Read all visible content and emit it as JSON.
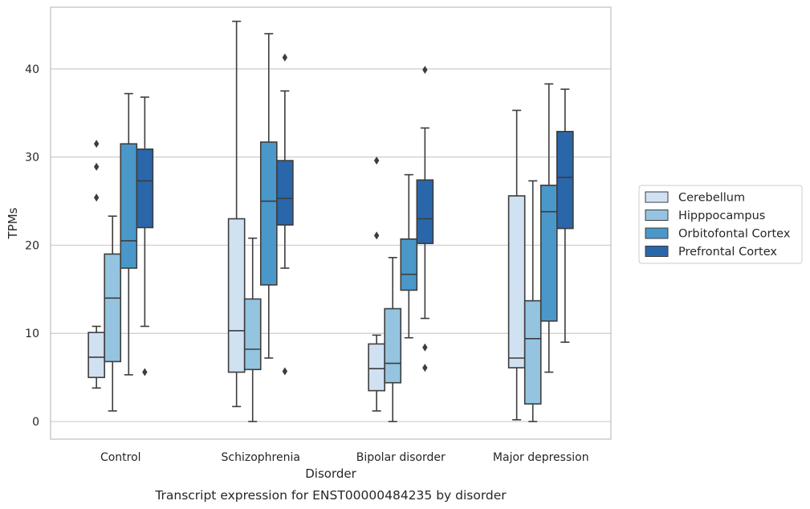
{
  "chart_data": {
    "type": "boxplot",
    "caption": "Transcript expression for ENST00000484235 by disorder",
    "xlabel": "Disorder",
    "ylabel": "TPMs",
    "ylim": [
      -2,
      47
    ],
    "yticks": [
      0,
      10,
      20,
      30,
      40
    ],
    "grid": "horizontal",
    "legend_position": "right-outside",
    "categories": [
      "Control",
      "Schizophrenia",
      "Bipolar disorder",
      "Major depression"
    ],
    "series": [
      {
        "name": "Cerebellum",
        "color": "#d0e1f2",
        "boxes": [
          {
            "whislo": 3.8,
            "q1": 5.0,
            "med": 7.3,
            "q3": 10.1,
            "whishi": 10.8,
            "fliers": [
              25.4,
              28.9,
              31.5
            ]
          },
          {
            "whislo": 1.7,
            "q1": 5.6,
            "med": 10.3,
            "q3": 23.0,
            "whishi": 45.4,
            "fliers": []
          },
          {
            "whislo": 1.2,
            "q1": 3.5,
            "med": 6.0,
            "q3": 8.8,
            "whishi": 9.8,
            "fliers": [
              21.1,
              29.6
            ]
          },
          {
            "whislo": 0.2,
            "q1": 6.1,
            "med": 7.2,
            "q3": 25.6,
            "whishi": 35.3,
            "fliers": []
          }
        ]
      },
      {
        "name": "Hipppocampus",
        "color": "#94c4df",
        "boxes": [
          {
            "whislo": 1.2,
            "q1": 6.8,
            "med": 14.0,
            "q3": 19.0,
            "whishi": 23.3,
            "fliers": []
          },
          {
            "whislo": 0.0,
            "q1": 5.9,
            "med": 8.2,
            "q3": 13.9,
            "whishi": 20.8,
            "fliers": []
          },
          {
            "whislo": 0.0,
            "q1": 4.4,
            "med": 6.6,
            "q3": 12.8,
            "whishi": 18.6,
            "fliers": []
          },
          {
            "whislo": 0.0,
            "q1": 2.0,
            "med": 9.4,
            "q3": 13.7,
            "whishi": 27.3,
            "fliers": []
          }
        ]
      },
      {
        "name": "Orbitofontal Cortex",
        "color": "#4a98c9",
        "boxes": [
          {
            "whislo": 5.3,
            "q1": 17.4,
            "med": 20.5,
            "q3": 31.5,
            "whishi": 37.2,
            "fliers": []
          },
          {
            "whislo": 7.2,
            "q1": 15.5,
            "med": 25.0,
            "q3": 31.7,
            "whishi": 44.0,
            "fliers": []
          },
          {
            "whislo": 9.5,
            "q1": 14.9,
            "med": 16.7,
            "q3": 20.7,
            "whishi": 28.0,
            "fliers": []
          },
          {
            "whislo": 5.6,
            "q1": 11.4,
            "med": 23.8,
            "q3": 26.8,
            "whishi": 38.3,
            "fliers": []
          }
        ]
      },
      {
        "name": "Prefrontal Cortex",
        "color": "#2a66aa",
        "boxes": [
          {
            "whislo": 10.8,
            "q1": 22.0,
            "med": 27.3,
            "q3": 30.9,
            "whishi": 36.8,
            "fliers": [
              5.6
            ]
          },
          {
            "whislo": 17.4,
            "q1": 22.3,
            "med": 25.3,
            "q3": 29.6,
            "whishi": 37.5,
            "fliers": [
              5.7,
              41.3
            ]
          },
          {
            "whislo": 11.7,
            "q1": 20.2,
            "med": 23.0,
            "q3": 27.4,
            "whishi": 33.3,
            "fliers": [
              6.1,
              8.4,
              39.9
            ]
          },
          {
            "whislo": 9.0,
            "q1": 21.9,
            "med": 27.7,
            "q3": 32.9,
            "whishi": 37.7,
            "fliers": []
          }
        ]
      }
    ]
  }
}
